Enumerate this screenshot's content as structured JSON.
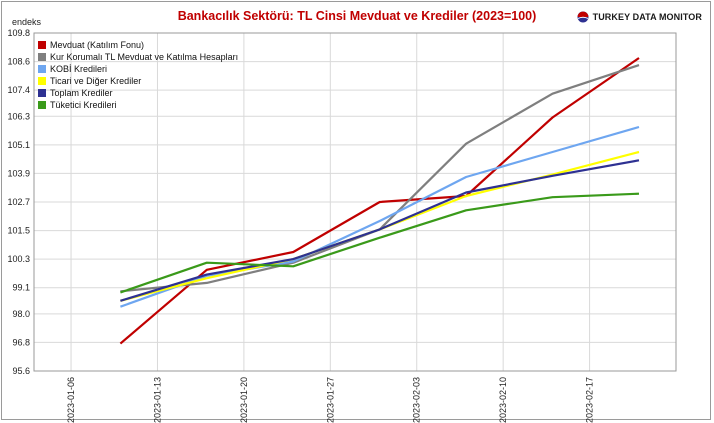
{
  "title": "Bankacılık Sektörü: TL Cinsi Mevduat ve Krediler (2023=100)",
  "brand": {
    "name": "TURKEY DATA MONITOR",
    "icon": "globe-icon"
  },
  "chart_data": {
    "type": "line",
    "title": "Bankacılık Sektörü: TL Cinsi Mevduat ve Krediler (2023=100)",
    "ylabel": "endeks",
    "xlabel": "",
    "x_ticks": [
      "2023-01-06",
      "2023-01-13",
      "2023-01-20",
      "2023-01-27",
      "2023-02-03",
      "2023-02-10",
      "2023-02-17"
    ],
    "x": [
      "2023-01-10",
      "2023-01-17",
      "2023-01-24",
      "2023-01-31",
      "2023-02-07",
      "2023-02-14",
      "2023-02-21"
    ],
    "ylim": [
      95.6,
      109.8
    ],
    "y_ticks": [
      "95.6",
      "96.8",
      "98.0",
      "99.1",
      "100.3",
      "101.5",
      "102.7",
      "103.9",
      "105.1",
      "106.3",
      "107.4",
      "108.6",
      "109.8"
    ],
    "grid": true,
    "legend_position": "top-left",
    "series": [
      {
        "name": "Mevduat (Katılım Fonu)",
        "color": "#c00000",
        "values": [
          96.75,
          99.85,
          100.6,
          102.7,
          102.95,
          106.25,
          108.75
        ]
      },
      {
        "name": "Kur Korumalı TL Mevduat ve Katılma Hesapları",
        "color": "#7f7f7f",
        "values": [
          98.95,
          99.3,
          100.15,
          101.55,
          105.15,
          107.25,
          108.45
        ]
      },
      {
        "name": "KOBİ Kredileri",
        "color": "#6ea6f0",
        "values": [
          98.3,
          99.6,
          100.2,
          101.9,
          103.75,
          104.8,
          105.85
        ]
      },
      {
        "name": "Ticari ve Diğer Krediler",
        "color": "#ffff00",
        "values": [
          98.55,
          99.5,
          100.3,
          101.55,
          102.95,
          103.85,
          104.8
        ]
      },
      {
        "name": "Toplam Krediler",
        "color": "#2e3192",
        "values": [
          98.55,
          99.65,
          100.3,
          101.55,
          103.1,
          103.8,
          104.45
        ]
      },
      {
        "name": "Tüketici Kredileri",
        "color": "#3a9a1a",
        "values": [
          98.9,
          100.15,
          100.0,
          101.2,
          102.35,
          102.9,
          103.05
        ]
      }
    ]
  }
}
